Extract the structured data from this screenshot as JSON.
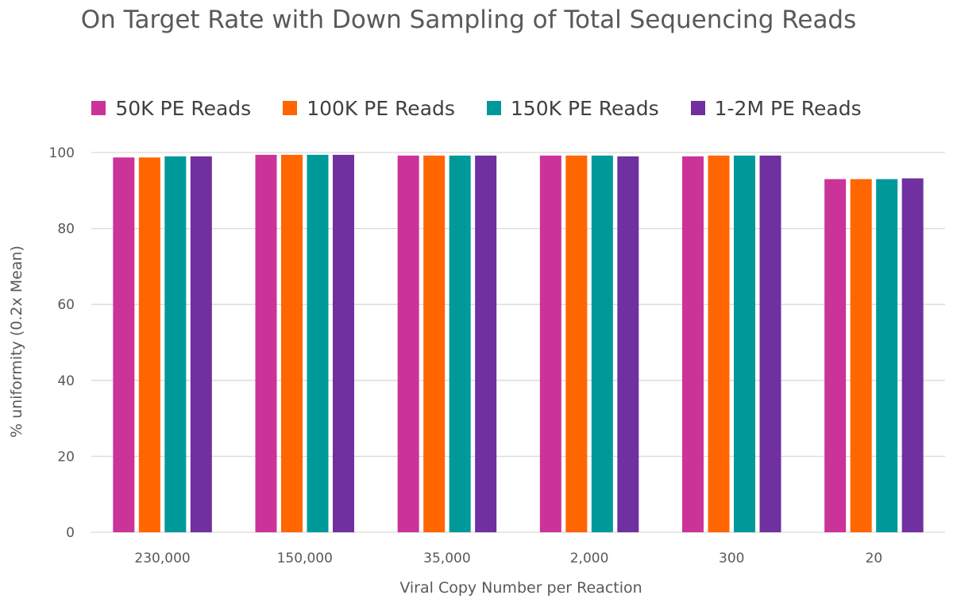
{
  "chart_data": {
    "type": "bar",
    "title": "On Target Rate with Down Sampling of Total Sequencing Reads",
    "xlabel": "Viral Copy Number per Reaction",
    "ylabel": "% uniformity (0.2x Mean)",
    "ylim": [
      0,
      100
    ],
    "yticks": [
      "0",
      "20",
      "40",
      "60",
      "80",
      "100"
    ],
    "grid": true,
    "legend_position": "top",
    "categories": [
      "230,000",
      "150,000",
      "35,000",
      "2,000",
      "300",
      "20"
    ],
    "series": [
      {
        "name": "50K PE Reads",
        "color": "#CC3399",
        "values": [
          98.7,
          99.4,
          99.2,
          99.2,
          99.0,
          93.0
        ]
      },
      {
        "name": "100K PE Reads",
        "color": "#FF6600",
        "values": [
          98.7,
          99.4,
          99.2,
          99.2,
          99.2,
          93.0
        ]
      },
      {
        "name": "150K PE Reads",
        "color": "#009999",
        "values": [
          99.0,
          99.4,
          99.2,
          99.2,
          99.2,
          93.0
        ]
      },
      {
        "name": "1-2M PE Reads",
        "color": "#7030A0",
        "values": [
          99.0,
          99.4,
          99.2,
          99.0,
          99.2,
          93.2
        ]
      }
    ]
  }
}
